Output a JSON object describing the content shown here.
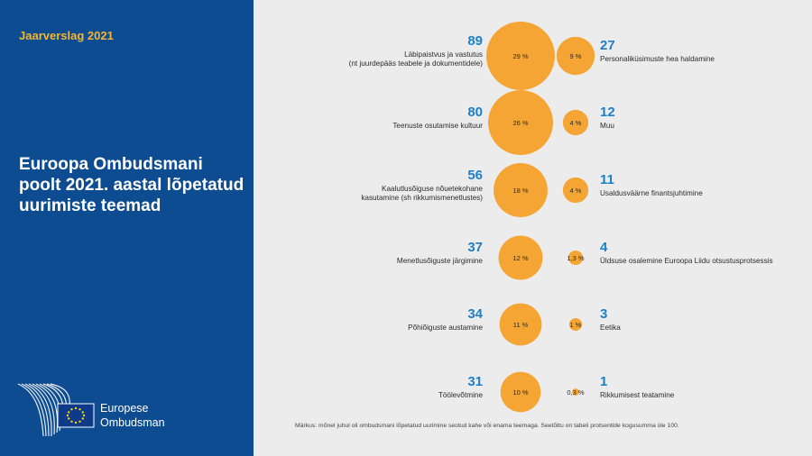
{
  "header": {
    "report_label": "Jaarverslag 2021",
    "title": "Euroopa Ombudsmani poolt 2021. aastal lõpetatud uurimiste teemad"
  },
  "logo": {
    "line1": "Europese",
    "line2": "Ombudsman"
  },
  "colors": {
    "bubble": "#f5a533",
    "number": "#1e7fc7",
    "panel": "#0e4c92",
    "accent": "#f2b632"
  },
  "chart_data": {
    "type": "bubble",
    "left": [
      {
        "count": 89,
        "percent": 29,
        "percent_label": "29 %",
        "label_lines": [
          "Läbipaistvus ja vastutus",
          "(nt juurdepääs teabele ja dokumentidele)"
        ]
      },
      {
        "count": 80,
        "percent": 26,
        "percent_label": "26 %",
        "label_lines": [
          "Teenuste osutamise kultuur"
        ]
      },
      {
        "count": 56,
        "percent": 18,
        "percent_label": "18 %",
        "label_lines": [
          "Kaalutlusõiguse nõuetekohane",
          "kasutamine (sh rikkumismenetlustes)"
        ]
      },
      {
        "count": 37,
        "percent": 12,
        "percent_label": "12 %",
        "label_lines": [
          "Menetlusõiguste järgimine"
        ]
      },
      {
        "count": 34,
        "percent": 11,
        "percent_label": "11 %",
        "label_lines": [
          "Põhiõiguste austamine"
        ]
      },
      {
        "count": 31,
        "percent": 10,
        "percent_label": "10 %",
        "label_lines": [
          "Töölevõtmine"
        ]
      }
    ],
    "right": [
      {
        "count": 27,
        "percent": 9,
        "percent_label": "9 %",
        "label_lines": [
          "Personaliküsimuste hea haldamine"
        ]
      },
      {
        "count": 12,
        "percent": 4,
        "percent_label": "4 %",
        "label_lines": [
          "Muu"
        ]
      },
      {
        "count": 11,
        "percent": 4,
        "percent_label": "4 %",
        "label_lines": [
          "Usaldusväärne finantsjuhtimine"
        ]
      },
      {
        "count": 4,
        "percent": 1.3,
        "percent_label": "1,3 %",
        "label_lines": [
          "Üldsuse osalemine Euroopa Liidu otsustusprotsessis"
        ]
      },
      {
        "count": 3,
        "percent": 1,
        "percent_label": "1 %",
        "label_lines": [
          "Eetika"
        ]
      },
      {
        "count": 1,
        "percent": 0.3,
        "percent_label": "0,3 %",
        "label_lines": [
          "Rikkumisest teatamine"
        ]
      }
    ]
  },
  "footnote": "Märkus: mõnel juhul oli ombudsmani lõpetatud uurimine seotud kahe või enama teemaga. Seetõttu on tabeli protsentide kogusumma üle 100."
}
